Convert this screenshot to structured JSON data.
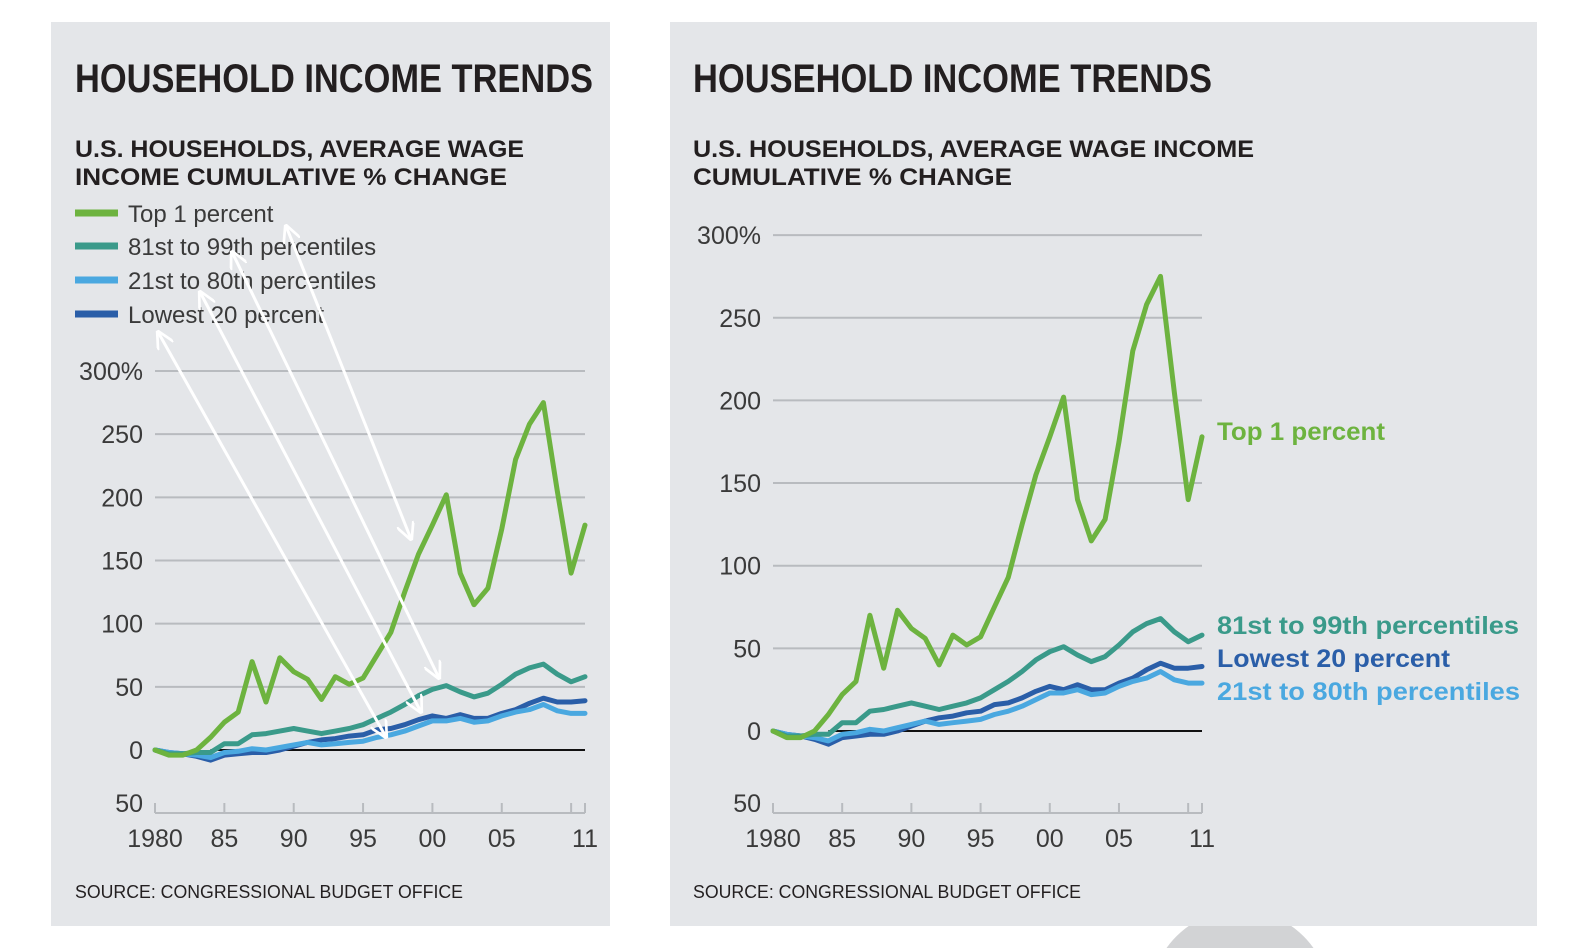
{
  "colors": {
    "top1": "#6db33f",
    "p81_99": "#3a9a8a",
    "p21_80": "#4aa8e0",
    "lowest20": "#2a5ea8",
    "panel": "#e4e6e9",
    "grid": "#b8bbbf"
  },
  "panels": [
    {
      "title": "HOUSEHOLD INCOME TRENDS",
      "subtitle_lines": [
        "U.S. HOUSEHOLDS, AVERAGE WAGE",
        "INCOME CUMULATIVE % CHANGE"
      ],
      "legend": [
        "Top 1 percent",
        "81st to 99th percentiles",
        "21st to 80th percentiles",
        "Lowest 20 percent"
      ],
      "source": "SOURCE: CONGRESSIONAL BUDGET OFFICE"
    },
    {
      "title": "HOUSEHOLD INCOME TRENDS",
      "subtitle_lines": [
        "U.S. HOUSEHOLDS, AVERAGE WAGE INCOME",
        "CUMULATIVE % CHANGE"
      ],
      "end_labels": [
        "Top 1 percent",
        "81st to 99th percentiles",
        "Lowest 20 percent",
        "21st to 80th percentiles"
      ],
      "source": "SOURCE: CONGRESSIONAL BUDGET OFFICE"
    }
  ],
  "chart_data": {
    "type": "line",
    "title": "HOUSEHOLD INCOME TRENDS",
    "subtitle": "U.S. HOUSEHOLDS, AVERAGE WAGE INCOME CUMULATIVE % CHANGE",
    "xlim": [
      1980,
      2011
    ],
    "ylim": [
      -50,
      300
    ],
    "y_ticks": [
      "300%",
      "250",
      "200",
      "150",
      "100",
      "50",
      "0",
      "50"
    ],
    "y_tick_values": [
      300,
      250,
      200,
      150,
      100,
      50,
      0,
      -50
    ],
    "x_ticks": [
      "1980",
      "85",
      "90",
      "95",
      "00",
      "05",
      "11"
    ],
    "x_tick_values": [
      1980,
      1985,
      1990,
      1995,
      2000,
      2005,
      2011
    ],
    "grid": true,
    "x": [
      1980,
      1981,
      1982,
      1983,
      1984,
      1985,
      1986,
      1987,
      1988,
      1989,
      1990,
      1991,
      1992,
      1993,
      1994,
      1995,
      1996,
      1997,
      1998,
      1999,
      2000,
      2001,
      2002,
      2003,
      2004,
      2005,
      2006,
      2007,
      2008,
      2009,
      2010,
      2011
    ],
    "series": [
      {
        "key": "lowest20",
        "name": "Lowest 20 percent",
        "values": [
          0,
          -2,
          -3,
          -5,
          -8,
          -4,
          -3,
          -2,
          -2,
          0,
          3,
          6,
          8,
          9,
          11,
          12,
          16,
          17,
          20,
          24,
          27,
          25,
          28,
          25,
          25,
          29,
          32,
          37,
          41,
          38,
          38,
          39
        ]
      },
      {
        "key": "p21_80",
        "name": "21st to 80th percentiles",
        "values": [
          0,
          -2,
          -3,
          -4,
          -6,
          -2,
          -1,
          1,
          0,
          2,
          4,
          6,
          4,
          5,
          6,
          7,
          10,
          12,
          15,
          19,
          23,
          23,
          25,
          22,
          23,
          27,
          30,
          32,
          36,
          31,
          29,
          29
        ]
      },
      {
        "key": "p81_99",
        "name": "81st to 99th percentiles",
        "values": [
          0,
          -3,
          -3,
          -2,
          -2,
          5,
          5,
          12,
          13,
          15,
          17,
          15,
          13,
          15,
          17,
          20,
          25,
          30,
          36,
          43,
          48,
          51,
          46,
          42,
          45,
          52,
          60,
          65,
          68,
          60,
          54,
          58
        ]
      },
      {
        "key": "top1",
        "name": "Top 1 percent",
        "values": [
          0,
          -4,
          -4,
          0,
          10,
          22,
          30,
          70,
          38,
          73,
          62,
          56,
          40,
          58,
          52,
          57,
          75,
          93,
          125,
          155,
          178,
          202,
          140,
          115,
          128,
          175,
          230,
          258,
          275,
          205,
          140,
          178
        ]
      }
    ],
    "source": "SOURCE: CONGRESSIONAL BUDGET OFFICE"
  }
}
